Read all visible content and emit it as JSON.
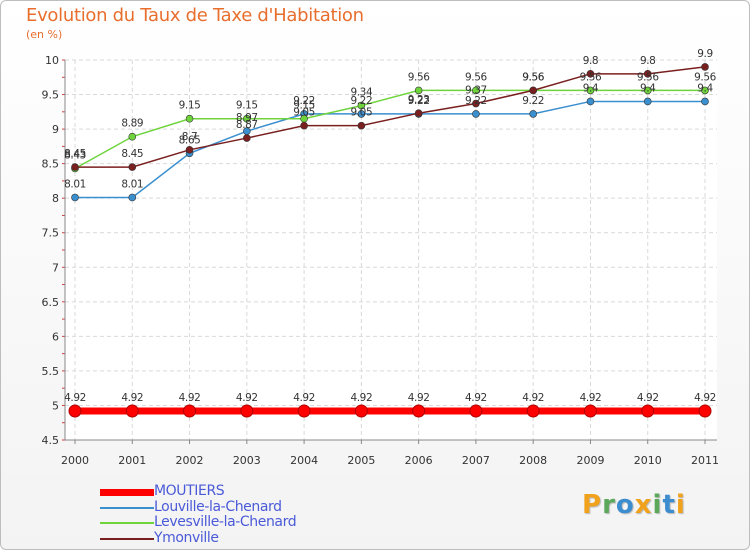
{
  "title": "Evolution du Taux de Taxe d'Habitation",
  "unit_label": "(en %)",
  "logo": {
    "letters": [
      "P",
      "r",
      "o",
      "x",
      "i",
      "t",
      "i"
    ],
    "colors": [
      "#f0a21c",
      "#5ba85b",
      "#3c8dd0",
      "#f0a21c",
      "#5ba85b",
      "#3c8dd0",
      "#f0a21c"
    ]
  },
  "chart_data": {
    "type": "line",
    "x": [
      "2000",
      "2001",
      "2002",
      "2003",
      "2004",
      "2005",
      "2006",
      "2007",
      "2008",
      "2009",
      "2010",
      "2011"
    ],
    "y_ticks": [
      "4.5",
      "5",
      "5.5",
      "6",
      "6.5",
      "7",
      "7.5",
      "8",
      "8.5",
      "9",
      "9.5",
      "10"
    ],
    "ylim": [
      4.5,
      10
    ],
    "grid": true,
    "legend_position": "bottom-left",
    "series": [
      {
        "name": "MOUTIERS",
        "color": "#ff0000",
        "values": [
          4.92,
          4.92,
          4.92,
          4.92,
          4.92,
          4.92,
          4.92,
          4.92,
          4.92,
          4.92,
          4.92,
          4.92
        ],
        "labels": [
          "4.92",
          "4.92",
          "4.92",
          "4.92",
          "4.92",
          "4.92",
          "4.92",
          "4.92",
          "4.92",
          "4.92",
          "4.92",
          "4.92"
        ]
      },
      {
        "name": "Louville-la-Chenard",
        "color": "#3a8fcf",
        "values": [
          8.01,
          8.01,
          8.65,
          8.97,
          9.22,
          9.22,
          9.22,
          9.22,
          9.22,
          9.4,
          9.4,
          9.4
        ],
        "labels": [
          "8.01",
          "8.01",
          "8.65",
          "8.97",
          "9.22",
          "9.22",
          "9.22",
          "9.22",
          "9.22",
          "9.4",
          "9.4",
          "9.4"
        ]
      },
      {
        "name": "Levesville-la-Chenard",
        "color": "#6fd43c",
        "values": [
          8.43,
          8.89,
          9.15,
          9.15,
          9.15,
          9.34,
          9.56,
          9.56,
          9.56,
          9.56,
          9.56,
          9.56
        ],
        "labels": [
          "8.43",
          "8.89",
          "9.15",
          "9.15",
          "9.15",
          "9.34",
          "9.56",
          "9.56",
          "9.56",
          "9.56",
          "9.56",
          "9.56"
        ]
      },
      {
        "name": "Ymonville",
        "color": "#7a1f1f",
        "values": [
          8.45,
          8.45,
          8.7,
          8.87,
          9.05,
          9.05,
          9.23,
          9.37,
          9.56,
          9.8,
          9.8,
          9.9
        ],
        "labels": [
          "8.45",
          "8.45",
          "8.7",
          "8.87",
          "9.05",
          "9.05",
          "9.23",
          "9.37",
          "9.56",
          "9.8",
          "9.8",
          "9.9"
        ]
      }
    ]
  }
}
